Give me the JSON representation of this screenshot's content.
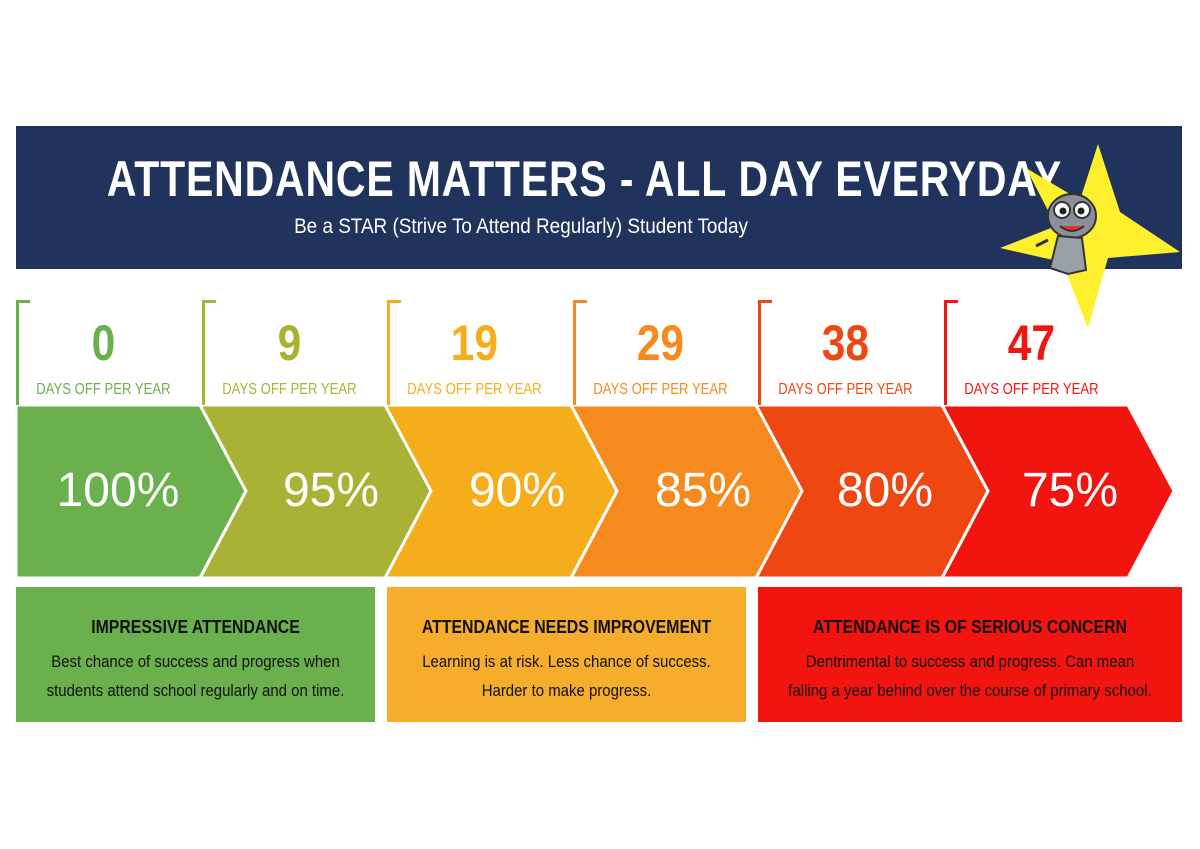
{
  "header": {
    "title": "ATTENDANCE MATTERS - ALL DAY EVERYDAY",
    "subtitle": "Be a STAR (Strive To Attend Regularly) Student Today"
  },
  "colors": {
    "header_bg": "#1f335c",
    "star": "#fff02e",
    "stages": [
      "#6ab04c",
      "#aab235",
      "#f6ad1c",
      "#f68a1e",
      "#ef4712",
      "#f2140f"
    ],
    "boxes": [
      "#6ab04c",
      "#f6ad2c",
      "#f2140f"
    ]
  },
  "stages": [
    {
      "days": "0",
      "label": "DAYS OFF PER YEAR",
      "percent": "100%"
    },
    {
      "days": "9",
      "label": "DAYS OFF PER YEAR",
      "percent": "95%"
    },
    {
      "days": "19",
      "label": "DAYS OFF PER YEAR",
      "percent": "90%"
    },
    {
      "days": "29",
      "label": "DAYS OFF PER YEAR",
      "percent": "85%"
    },
    {
      "days": "38",
      "label": "DAYS OFF PER YEAR",
      "percent": "80%"
    },
    {
      "days": "47",
      "label": "DAYS OFF PER YEAR",
      "percent": "75%"
    }
  ],
  "boxes": [
    {
      "title": "IMPRESSIVE ATTENDANCE",
      "body": "Best chance of success and progress when\nstudents attend school regularly and on time."
    },
    {
      "title": "ATTENDANCE NEEDS IMPROVEMENT",
      "body": "Learning is at risk. Less chance of success.\nHarder to make progress."
    },
    {
      "title": "ATTENDANCE IS OF SERIOUS CONCERN",
      "body": "Dentrimental to success and progress. Can mean\nfalling a year behind over the course of primary school."
    }
  ]
}
